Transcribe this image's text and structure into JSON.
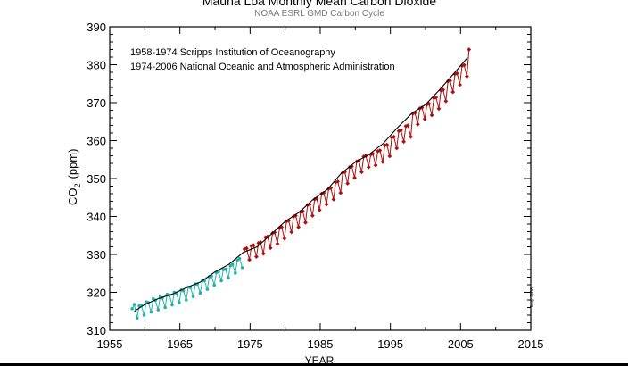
{
  "chart_data": {
    "type": "scatter",
    "title": "Mauna Loa Monthly Mean Carbon Dioxide",
    "subtitle": "NOAA ESRL GMD Carbon Cycle",
    "xlabel": "YEAR",
    "ylabel_main": "CO",
    "ylabel_sub": "2",
    "ylabel_unit": "(ppm)",
    "xlim": [
      1955,
      2015
    ],
    "ylim": [
      310,
      390
    ],
    "x_ticks": [
      1955,
      1965,
      1975,
      1985,
      1995,
      2005,
      2015
    ],
    "x_tick_labels": [
      "1955",
      "1965",
      "1975",
      "1985",
      "1995",
      "2005",
      "2015"
    ],
    "y_ticks": [
      310,
      320,
      330,
      340,
      350,
      360,
      370,
      380,
      390
    ],
    "y_tick_labels": [
      "310",
      "320",
      "330",
      "340",
      "350",
      "360",
      "370",
      "380",
      "390"
    ],
    "annotations": [
      "1958-1974 Scripps Institution of Oceanography",
      "1974-2006 National Oceanic and Atmospheric Administration"
    ],
    "date_stamp": "May 2006",
    "grid": false,
    "series": [
      {
        "color": "#20b2aa",
        "marker": "dot",
        "x": [
          1958.2,
          1958.5,
          1958.9,
          1959.2,
          1959.5,
          1959.9,
          1960.2,
          1960.5,
          1960.9,
          1961.2,
          1961.5,
          1961.9,
          1962.2,
          1962.5,
          1962.9,
          1963.2,
          1963.5,
          1963.9,
          1964.2,
          1964.5,
          1964.9,
          1965.2,
          1965.5,
          1965.9,
          1966.2,
          1966.5,
          1966.9,
          1967.2,
          1967.5,
          1967.9,
          1968.2,
          1968.5,
          1968.9,
          1969.2,
          1969.5,
          1969.9,
          1970.2,
          1970.5,
          1970.9,
          1971.2,
          1971.5,
          1971.9,
          1972.2,
          1972.5,
          1972.9,
          1973.2,
          1973.5,
          1973.9
        ],
        "y": [
          315.7,
          316.8,
          313.2,
          316.4,
          316.6,
          314.0,
          317.5,
          317.3,
          314.8,
          318.3,
          317.9,
          315.4,
          318.9,
          318.5,
          316.0,
          319.5,
          319.2,
          316.7,
          320.0,
          319.8,
          317.3,
          320.6,
          320.4,
          318.0,
          321.4,
          321.3,
          318.9,
          322.2,
          322.2,
          319.8,
          323.0,
          323.1,
          320.8,
          324.1,
          324.3,
          321.9,
          325.2,
          325.4,
          323.1,
          326.0,
          326.1,
          323.8,
          327.0,
          327.4,
          325.1,
          328.5,
          328.9,
          326.5
        ]
      },
      {
        "color": "#aa1111",
        "marker": "diamond",
        "x": [
          1974.2,
          1974.5,
          1974.9,
          1975.2,
          1975.5,
          1975.9,
          1976.2,
          1976.5,
          1976.9,
          1977.2,
          1977.5,
          1977.9,
          1978.2,
          1978.5,
          1978.9,
          1979.2,
          1979.5,
          1979.9,
          1980.2,
          1980.5,
          1980.9,
          1981.2,
          1981.5,
          1981.9,
          1982.2,
          1982.5,
          1982.9,
          1983.2,
          1983.5,
          1983.9,
          1984.2,
          1984.5,
          1984.9,
          1985.2,
          1985.5,
          1985.9,
          1986.2,
          1986.5,
          1986.9,
          1987.2,
          1987.5,
          1987.9,
          1988.2,
          1988.5,
          1988.9,
          1989.2,
          1989.5,
          1989.9,
          1990.2,
          1990.5,
          1990.9,
          1991.2,
          1991.5,
          1991.9,
          1992.2,
          1992.5,
          1992.9,
          1993.2,
          1993.5,
          1993.9,
          1994.2,
          1994.5,
          1994.9,
          1995.2,
          1995.5,
          1995.9,
          1996.2,
          1996.5,
          1996.9,
          1997.2,
          1997.5,
          1997.9,
          1998.2,
          1998.5,
          1998.9,
          1999.2,
          1999.5,
          1999.9,
          2000.2,
          2000.5,
          2000.9,
          2001.2,
          2001.5,
          2001.9,
          2002.2,
          2002.5,
          2002.9,
          2003.2,
          2003.5,
          2003.9,
          2004.2,
          2004.5,
          2004.9,
          2005.2,
          2005.5,
          2005.9,
          2006.2
        ],
        "y": [
          331.4,
          331.6,
          328.6,
          332.2,
          332.4,
          329.4,
          333.0,
          333.2,
          330.2,
          334.5,
          334.7,
          331.7,
          335.6,
          335.8,
          332.8,
          337.0,
          337.2,
          334.2,
          338.7,
          338.9,
          335.9,
          340.0,
          340.2,
          337.2,
          341.2,
          341.4,
          338.4,
          343.0,
          343.2,
          340.2,
          344.5,
          344.7,
          341.7,
          346.0,
          346.2,
          343.2,
          347.3,
          347.5,
          344.5,
          349.0,
          349.2,
          346.2,
          351.5,
          351.7,
          348.7,
          353.0,
          353.2,
          350.2,
          354.5,
          354.7,
          351.7,
          355.8,
          356.0,
          353.0,
          356.3,
          356.5,
          353.5,
          357.2,
          357.4,
          354.4,
          358.7,
          358.9,
          355.9,
          360.8,
          361.0,
          358.0,
          362.5,
          362.7,
          359.7,
          363.8,
          364.0,
          361.0,
          367.1,
          367.3,
          364.3,
          368.5,
          368.7,
          365.7,
          369.5,
          369.7,
          366.7,
          371.2,
          371.4,
          368.4,
          373.2,
          373.4,
          370.4,
          375.6,
          375.8,
          372.8,
          377.5,
          377.7,
          374.7,
          379.7,
          379.9,
          376.9,
          384.0
        ]
      },
      {
        "color": "#000000",
        "marker": "none",
        "x": [
          1958.5,
          1960,
          1962,
          1964,
          1966,
          1968,
          1970,
          1972,
          1974,
          1976,
          1978,
          1980,
          1982,
          1984,
          1986,
          1988,
          1990,
          1992,
          1994,
          1996,
          1998,
          2000,
          2002,
          2004,
          2006
        ],
        "y": [
          315.0,
          316.8,
          318.4,
          319.6,
          321.3,
          322.8,
          325.4,
          327.4,
          330.5,
          332.0,
          335.3,
          338.7,
          341.1,
          344.5,
          347.1,
          351.4,
          354.3,
          356.4,
          359.3,
          363.4,
          367.1,
          369.5,
          373.4,
          377.6,
          381.9
        ]
      }
    ]
  }
}
